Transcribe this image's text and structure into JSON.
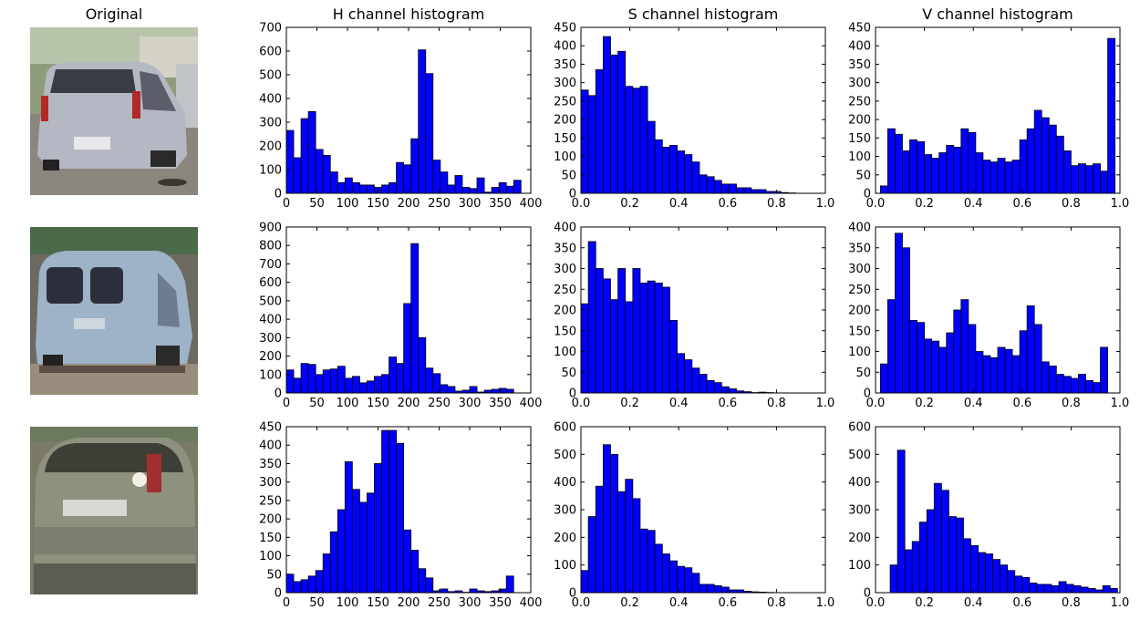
{
  "titles": {
    "original": "Original",
    "h": "H channel histogram",
    "s": "S channel histogram",
    "v": "V channel histogram"
  },
  "colors": {
    "bar": "#0000ff",
    "edge": "#000000"
  },
  "images": [
    {
      "alt": "silver hatchback rear view on street"
    },
    {
      "alt": "light-blue van rear view, blurred"
    },
    {
      "alt": "grey hatchback rear view"
    }
  ],
  "chart_data": [
    {
      "type": "bar",
      "row": 0,
      "channel": "H",
      "title": "H channel histogram",
      "xlim": [
        0,
        400
      ],
      "ylim": [
        0,
        700
      ],
      "xticks": [
        0,
        50,
        100,
        150,
        200,
        250,
        300,
        350,
        400
      ],
      "yticks": [
        0,
        100,
        200,
        300,
        400,
        500,
        600,
        700
      ],
      "bin_start": 0,
      "bin_width": 12,
      "values": [
        265,
        150,
        315,
        345,
        185,
        160,
        90,
        45,
        65,
        45,
        35,
        35,
        25,
        35,
        45,
        130,
        120,
        230,
        605,
        505,
        140,
        90,
        35,
        75,
        25,
        20,
        65,
        5,
        25,
        45,
        30,
        55,
        0
      ]
    },
    {
      "type": "bar",
      "row": 0,
      "channel": "S",
      "title": "S channel histogram",
      "xlim": [
        0,
        1.0
      ],
      "ylim": [
        0,
        450
      ],
      "xticks": [
        0.0,
        0.2,
        0.4,
        0.6,
        0.8,
        1.0
      ],
      "yticks": [
        0,
        50,
        100,
        150,
        200,
        250,
        300,
        350,
        400,
        450
      ],
      "bin_start": 0,
      "bin_width": 0.0303,
      "values": [
        280,
        265,
        335,
        425,
        375,
        385,
        290,
        285,
        290,
        195,
        145,
        125,
        130,
        115,
        105,
        85,
        50,
        45,
        35,
        25,
        25,
        15,
        15,
        10,
        10,
        5,
        5,
        2,
        1,
        0
      ]
    },
    {
      "type": "bar",
      "row": 0,
      "channel": "V",
      "title": "V channel histogram",
      "xlim": [
        0,
        1.0
      ],
      "ylim": [
        0,
        450
      ],
      "xticks": [
        0.0,
        0.2,
        0.4,
        0.6,
        0.8,
        1.0
      ],
      "yticks": [
        0,
        50,
        100,
        150,
        200,
        250,
        300,
        350,
        400,
        450
      ],
      "bin_start": 0.02,
      "bin_width": 0.03,
      "values": [
        20,
        175,
        160,
        115,
        145,
        140,
        105,
        95,
        110,
        130,
        125,
        175,
        165,
        110,
        90,
        85,
        95,
        85,
        90,
        145,
        175,
        225,
        205,
        185,
        155,
        115,
        75,
        80,
        75,
        80,
        60,
        420
      ]
    },
    {
      "type": "bar",
      "row": 1,
      "channel": "H",
      "title": "",
      "xlim": [
        0,
        400
      ],
      "ylim": [
        0,
        900
      ],
      "xticks": [
        0,
        50,
        100,
        150,
        200,
        250,
        300,
        350,
        400
      ],
      "yticks": [
        0,
        100,
        200,
        300,
        400,
        500,
        600,
        700,
        800,
        900
      ],
      "bin_start": 0,
      "bin_width": 12,
      "values": [
        125,
        80,
        160,
        155,
        100,
        125,
        130,
        145,
        80,
        90,
        55,
        65,
        90,
        100,
        195,
        160,
        485,
        810,
        300,
        135,
        105,
        45,
        35,
        10,
        15,
        35,
        5,
        15,
        20,
        25,
        20,
        0,
        0
      ]
    },
    {
      "type": "bar",
      "row": 1,
      "channel": "S",
      "title": "",
      "xlim": [
        0,
        1.0
      ],
      "ylim": [
        0,
        400
      ],
      "xticks": [
        0.0,
        0.2,
        0.4,
        0.6,
        0.8,
        1.0
      ],
      "yticks": [
        0,
        50,
        100,
        150,
        200,
        250,
        300,
        350,
        400
      ],
      "bin_start": 0,
      "bin_width": 0.0303,
      "values": [
        215,
        365,
        300,
        275,
        225,
        300,
        220,
        300,
        265,
        270,
        265,
        255,
        175,
        95,
        80,
        60,
        45,
        30,
        25,
        15,
        10,
        5,
        3,
        1,
        2,
        1,
        0,
        0,
        0,
        0
      ]
    },
    {
      "type": "bar",
      "row": 1,
      "channel": "V",
      "title": "",
      "xlim": [
        0,
        1.0
      ],
      "ylim": [
        0,
        400
      ],
      "xticks": [
        0.0,
        0.2,
        0.4,
        0.6,
        0.8,
        1.0
      ],
      "yticks": [
        0,
        50,
        100,
        150,
        200,
        250,
        300,
        350,
        400
      ],
      "bin_start": 0.02,
      "bin_width": 0.03,
      "values": [
        70,
        225,
        385,
        350,
        175,
        170,
        130,
        125,
        110,
        145,
        200,
        225,
        165,
        100,
        90,
        85,
        110,
        105,
        90,
        150,
        210,
        165,
        75,
        65,
        45,
        40,
        35,
        45,
        30,
        25,
        110
      ]
    },
    {
      "type": "bar",
      "row": 2,
      "channel": "H",
      "title": "",
      "xlim": [
        0,
        400
      ],
      "ylim": [
        0,
        450
      ],
      "xticks": [
        0,
        50,
        100,
        150,
        200,
        250,
        300,
        350,
        400
      ],
      "yticks": [
        0,
        50,
        100,
        150,
        200,
        250,
        300,
        350,
        400,
        450
      ],
      "bin_start": 0,
      "bin_width": 12,
      "values": [
        50,
        30,
        35,
        45,
        60,
        105,
        165,
        225,
        355,
        280,
        245,
        270,
        350,
        440,
        440,
        405,
        170,
        115,
        65,
        40,
        5,
        10,
        3,
        5,
        1,
        10,
        5,
        3,
        5,
        10,
        45,
        0,
        0
      ]
    },
    {
      "type": "bar",
      "row": 2,
      "channel": "S",
      "title": "",
      "xlim": [
        0,
        1.0
      ],
      "ylim": [
        0,
        600
      ],
      "xticks": [
        0.0,
        0.2,
        0.4,
        0.6,
        0.8,
        1.0
      ],
      "yticks": [
        0,
        100,
        200,
        300,
        400,
        500,
        600
      ],
      "bin_start": 0,
      "bin_width": 0.0303,
      "values": [
        80,
        275,
        385,
        535,
        500,
        365,
        410,
        340,
        230,
        225,
        175,
        140,
        115,
        95,
        90,
        70,
        30,
        30,
        25,
        20,
        10,
        10,
        5,
        3,
        2,
        1,
        0,
        0,
        0,
        0
      ]
    },
    {
      "type": "bar",
      "row": 2,
      "channel": "V",
      "title": "",
      "xlim": [
        0,
        1.0
      ],
      "ylim": [
        0,
        600
      ],
      "xticks": [
        0.0,
        0.2,
        0.4,
        0.6,
        0.8,
        1.0
      ],
      "yticks": [
        0,
        100,
        200,
        300,
        400,
        500,
        600
      ],
      "bin_start": 0.06,
      "bin_width": 0.03,
      "values": [
        100,
        515,
        155,
        185,
        255,
        300,
        395,
        370,
        275,
        270,
        195,
        170,
        145,
        140,
        120,
        100,
        80,
        60,
        55,
        35,
        30,
        30,
        25,
        40,
        30,
        25,
        20,
        15,
        10,
        25,
        15
      ]
    }
  ]
}
